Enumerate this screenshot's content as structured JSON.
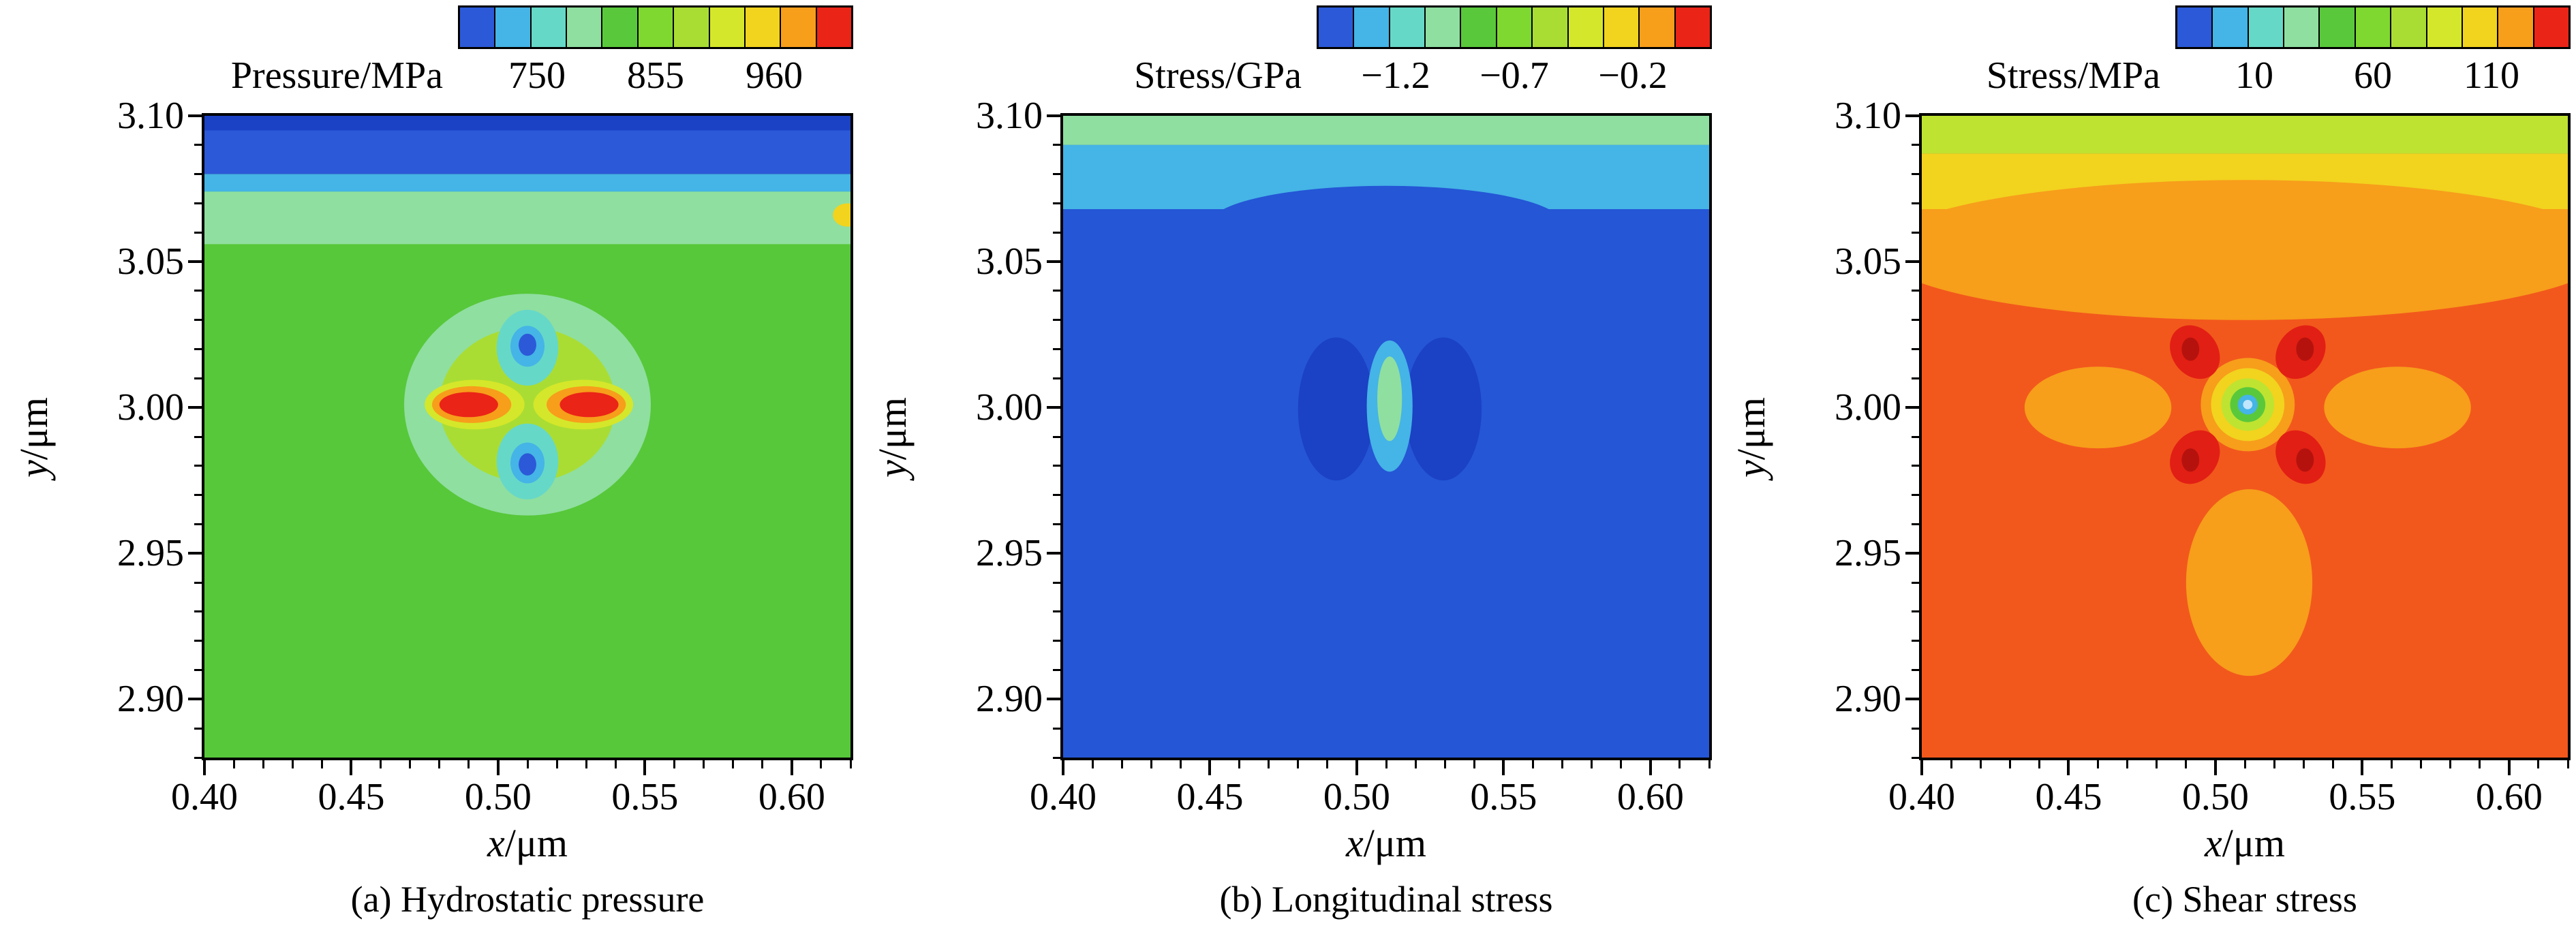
{
  "figure": {
    "background": "#ffffff"
  },
  "palette": [
    "#2b59d8",
    "#45b4e6",
    "#66d8c8",
    "#8fdfa0",
    "#59c93b",
    "#7fd82f",
    "#aadd33",
    "#d5e72a",
    "#f2d31e",
    "#f79e1b",
    "#ea2417"
  ],
  "chart_data": [
    {
      "type": "contour",
      "caption": "(a) Hydrostatic pressure",
      "colorbar": {
        "label": "Pressure/MPa",
        "tick_labels": [
          "750",
          "855",
          "960"
        ],
        "range_min": 750,
        "range_max": 960
      },
      "xlabel": {
        "var": "x",
        "unit": "/μm"
      },
      "ylabel": {
        "var": "y",
        "unit": "/μm"
      },
      "x_range": [
        0.4,
        0.62
      ],
      "y_range": [
        2.88,
        3.1
      ],
      "x_ticks": [
        {
          "v": 0.4,
          "label": "0.40"
        },
        {
          "v": 0.45,
          "label": "0.45"
        },
        {
          "v": 0.5,
          "label": "0.50"
        },
        {
          "v": 0.55,
          "label": "0.55"
        },
        {
          "v": 0.6,
          "label": "0.60"
        }
      ],
      "y_ticks": [
        {
          "v": 3.1,
          "label": "3.10"
        },
        {
          "v": 3.05,
          "label": "3.05"
        },
        {
          "v": 3.0,
          "label": "3.00"
        },
        {
          "v": 2.95,
          "label": "2.95"
        },
        {
          "v": 2.9,
          "label": "2.90"
        }
      ],
      "minor_tick_step": 0.01,
      "field": {
        "bg": "#57c83a",
        "bands": [
          {
            "y0": 3.08,
            "y1": 3.102,
            "color": "#2b59d8"
          },
          {
            "y0": 3.095,
            "y1": 3.102,
            "color": "#1b41c4"
          },
          {
            "y0": 3.074,
            "y1": 3.08,
            "color": "#45b4e6"
          },
          {
            "y0": 3.056,
            "y1": 3.074,
            "color": "#8fdfa0"
          }
        ],
        "shapes": [
          {
            "type": "ellipse",
            "cx": 0.51,
            "cy": 3.001,
            "rx": 0.042,
            "ry": 0.038,
            "color": "#8fdfa0"
          },
          {
            "type": "ellipse",
            "cx": 0.51,
            "cy": 3.001,
            "rx": 0.03,
            "ry": 0.0265,
            "color": "#aadd33"
          },
          {
            "type": "ellipse",
            "cx": 0.51,
            "cy": 3.0205,
            "rx": 0.0105,
            "ry": 0.013,
            "color": "#66d8c8"
          },
          {
            "type": "ellipse",
            "cx": 0.51,
            "cy": 3.021,
            "rx": 0.0058,
            "ry": 0.007,
            "color": "#45b4e6"
          },
          {
            "type": "ellipse",
            "cx": 0.51,
            "cy": 3.0215,
            "rx": 0.003,
            "ry": 0.0038,
            "color": "#2b59d8"
          },
          {
            "type": "ellipse",
            "cx": 0.51,
            "cy": 2.9815,
            "rx": 0.0105,
            "ry": 0.013,
            "color": "#66d8c8"
          },
          {
            "type": "ellipse",
            "cx": 0.51,
            "cy": 2.981,
            "rx": 0.0058,
            "ry": 0.007,
            "color": "#45b4e6"
          },
          {
            "type": "ellipse",
            "cx": 0.51,
            "cy": 2.9805,
            "rx": 0.003,
            "ry": 0.0038,
            "color": "#2b59d8"
          },
          {
            "type": "ellipse",
            "cx": 0.492,
            "cy": 3.001,
            "rx": 0.017,
            "ry": 0.0085,
            "color": "#d5e72a"
          },
          {
            "type": "ellipse",
            "cx": 0.491,
            "cy": 3.001,
            "rx": 0.0135,
            "ry": 0.0063,
            "color": "#f79e1b"
          },
          {
            "type": "ellipse",
            "cx": 0.49,
            "cy": 3.001,
            "rx": 0.01,
            "ry": 0.0043,
            "color": "#ea2417"
          },
          {
            "type": "ellipse",
            "cx": 0.529,
            "cy": 3.001,
            "rx": 0.017,
            "ry": 0.0085,
            "color": "#d5e72a"
          },
          {
            "type": "ellipse",
            "cx": 0.53,
            "cy": 3.001,
            "rx": 0.0135,
            "ry": 0.0063,
            "color": "#f79e1b"
          },
          {
            "type": "ellipse",
            "cx": 0.531,
            "cy": 3.001,
            "rx": 0.01,
            "ry": 0.0043,
            "color": "#ea2417"
          },
          {
            "type": "ellipse",
            "cx": 0.619,
            "cy": 3.066,
            "rx": 0.005,
            "ry": 0.004,
            "color": "#f2d31e"
          }
        ]
      }
    },
    {
      "type": "contour",
      "caption": "(b) Longitudinal stress",
      "colorbar": {
        "label": "Stress/GPa",
        "tick_labels": [
          "−1.2",
          "−0.7",
          "−0.2"
        ],
        "range_min": -1.2,
        "range_max": -0.2
      },
      "xlabel": {
        "var": "x",
        "unit": "/μm"
      },
      "ylabel": {
        "var": "y",
        "unit": "/μm"
      },
      "x_range": [
        0.4,
        0.62
      ],
      "y_range": [
        2.88,
        3.1
      ],
      "x_ticks": [
        {
          "v": 0.4,
          "label": "0.40"
        },
        {
          "v": 0.45,
          "label": "0.45"
        },
        {
          "v": 0.5,
          "label": "0.50"
        },
        {
          "v": 0.55,
          "label": "0.55"
        },
        {
          "v": 0.6,
          "label": "0.60"
        }
      ],
      "y_ticks": [
        {
          "v": 3.1,
          "label": "3.10"
        },
        {
          "v": 3.05,
          "label": "3.05"
        },
        {
          "v": 3.0,
          "label": "3.00"
        },
        {
          "v": 2.95,
          "label": "2.95"
        },
        {
          "v": 2.9,
          "label": "2.90"
        }
      ],
      "minor_tick_step": 0.01,
      "field": {
        "bg": "#2456d6",
        "bands": [
          {
            "y0": 3.09,
            "y1": 3.102,
            "color": "#8fdfa0"
          },
          {
            "y0": 3.068,
            "y1": 3.09,
            "color": "#45b4e6"
          }
        ],
        "shapes": [
          {
            "type": "ellipse",
            "cx": 0.51,
            "cy": 3.063,
            "rx": 0.06,
            "ry": 0.013,
            "color": "#2456d6"
          },
          {
            "type": "ellipse",
            "cx": 0.493,
            "cy": 2.9995,
            "rx": 0.013,
            "ry": 0.0245,
            "color": "#1b41c4"
          },
          {
            "type": "ellipse",
            "cx": 0.5295,
            "cy": 2.9995,
            "rx": 0.013,
            "ry": 0.0245,
            "color": "#1b41c4"
          },
          {
            "type": "ellipse",
            "cx": 0.5112,
            "cy": 3.0005,
            "rx": 0.0078,
            "ry": 0.0225,
            "color": "#45b4e6"
          },
          {
            "type": "ellipse",
            "cx": 0.5112,
            "cy": 3.003,
            "rx": 0.0042,
            "ry": 0.0145,
            "color": "#8fdfa0"
          }
        ]
      }
    },
    {
      "type": "contour",
      "caption": "(c) Shear stress",
      "colorbar": {
        "label": "Stress/MPa",
        "tick_labels": [
          "10",
          "60",
          "110"
        ],
        "range_min": 10,
        "range_max": 110
      },
      "xlabel": {
        "var": "x",
        "unit": "/μm"
      },
      "ylabel": {
        "var": "y",
        "unit": "/μm"
      },
      "x_range": [
        0.4,
        0.62
      ],
      "y_range": [
        2.88,
        3.1
      ],
      "x_ticks": [
        {
          "v": 0.4,
          "label": "0.40"
        },
        {
          "v": 0.45,
          "label": "0.45"
        },
        {
          "v": 0.5,
          "label": "0.50"
        },
        {
          "v": 0.55,
          "label": "0.55"
        },
        {
          "v": 0.6,
          "label": "0.60"
        }
      ],
      "y_ticks": [
        {
          "v": 3.1,
          "label": "3.10"
        },
        {
          "v": 3.05,
          "label": "3.05"
        },
        {
          "v": 3.0,
          "label": "3.00"
        },
        {
          "v": 2.95,
          "label": "2.95"
        },
        {
          "v": 2.9,
          "label": "2.90"
        }
      ],
      "minor_tick_step": 0.01,
      "field": {
        "bg": "#f2581c",
        "bands": [
          {
            "y0": 3.087,
            "y1": 3.102,
            "color": "#bfe331"
          },
          {
            "y0": 3.068,
            "y1": 3.087,
            "color": "#f2d31e"
          },
          {
            "y0": 3.052,
            "y1": 3.068,
            "color": "#f79e1b"
          }
        ],
        "shapes": [
          {
            "type": "ellipse",
            "cx": 0.51,
            "cy": 3.054,
            "rx": 0.125,
            "ry": 0.024,
            "color": "#f79e1b"
          },
          {
            "type": "ellipse",
            "cx": 0.46,
            "cy": 3.0,
            "rx": 0.025,
            "ry": 0.014,
            "color": "#f79e1b"
          },
          {
            "type": "ellipse",
            "cx": 0.562,
            "cy": 3.0,
            "rx": 0.025,
            "ry": 0.014,
            "color": "#f79e1b"
          },
          {
            "type": "ellipse",
            "cx": 0.5115,
            "cy": 2.94,
            "rx": 0.0215,
            "ry": 0.032,
            "color": "#f79e1b"
          },
          {
            "type": "ellipse",
            "cx": 0.511,
            "cy": 3.001,
            "rx": 0.016,
            "ry": 0.016,
            "color": "#f79e1b"
          },
          {
            "type": "ellipse",
            "cx": 0.511,
            "cy": 3.001,
            "rx": 0.0125,
            "ry": 0.0125,
            "color": "#f2d31e"
          },
          {
            "type": "ellipse",
            "cx": 0.493,
            "cy": 3.019,
            "rx": 0.0078,
            "ry": 0.0098,
            "color": "#e21f14",
            "rot": -35
          },
          {
            "type": "ellipse",
            "cx": 0.529,
            "cy": 3.019,
            "rx": 0.0078,
            "ry": 0.0098,
            "color": "#e21f14",
            "rot": 35
          },
          {
            "type": "ellipse",
            "cx": 0.493,
            "cy": 2.983,
            "rx": 0.0078,
            "ry": 0.0098,
            "color": "#e21f14",
            "rot": 35
          },
          {
            "type": "ellipse",
            "cx": 0.529,
            "cy": 2.983,
            "rx": 0.0078,
            "ry": 0.0098,
            "color": "#e21f14",
            "rot": -35
          },
          {
            "type": "ellipse",
            "cx": 0.4915,
            "cy": 3.02,
            "rx": 0.003,
            "ry": 0.004,
            "color": "#b5120e"
          },
          {
            "type": "ellipse",
            "cx": 0.5305,
            "cy": 3.02,
            "rx": 0.003,
            "ry": 0.004,
            "color": "#b5120e"
          },
          {
            "type": "ellipse",
            "cx": 0.4915,
            "cy": 2.982,
            "rx": 0.003,
            "ry": 0.004,
            "color": "#b5120e"
          },
          {
            "type": "ellipse",
            "cx": 0.5305,
            "cy": 2.982,
            "rx": 0.003,
            "ry": 0.004,
            "color": "#b5120e"
          },
          {
            "type": "ellipse",
            "cx": 0.511,
            "cy": 3.001,
            "rx": 0.009,
            "ry": 0.009,
            "color": "#bfe331"
          },
          {
            "type": "ellipse",
            "cx": 0.511,
            "cy": 3.001,
            "rx": 0.006,
            "ry": 0.006,
            "color": "#59c93b"
          },
          {
            "type": "ellipse",
            "cx": 0.511,
            "cy": 3.001,
            "rx": 0.0034,
            "ry": 0.0034,
            "color": "#45b4e6"
          },
          {
            "type": "ellipse",
            "cx": 0.511,
            "cy": 3.001,
            "rx": 0.0016,
            "ry": 0.0016,
            "color": "#bfe6ff"
          }
        ]
      }
    }
  ]
}
